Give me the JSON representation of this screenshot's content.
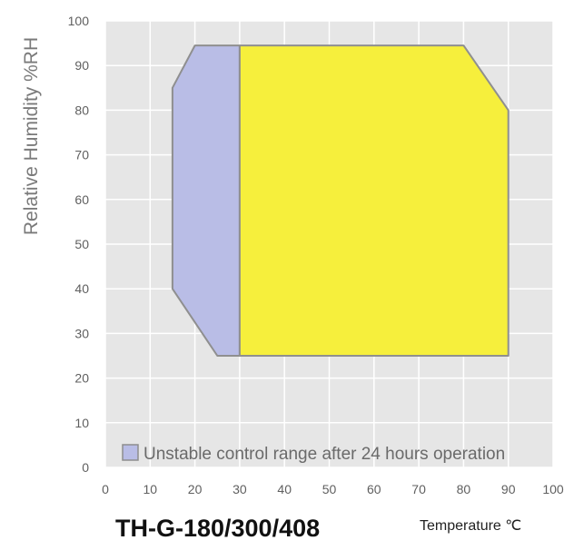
{
  "chart_data": {
    "type": "area",
    "title": "TH-G-180/300/408",
    "xlabel": "Temperature ℃",
    "ylabel": "Relative Humidity %RH",
    "xlim": [
      0,
      100
    ],
    "ylim": [
      0,
      100
    ],
    "x_ticks": [
      0,
      10,
      20,
      30,
      40,
      50,
      60,
      70,
      80,
      90,
      100
    ],
    "y_ticks": [
      0,
      10,
      20,
      30,
      40,
      50,
      60,
      70,
      80,
      90,
      100
    ],
    "grid": true,
    "series": [
      {
        "name": "Unstable control range after 24 hours operation",
        "color": "#b9bde6",
        "points": [
          [
            30,
            25
          ],
          [
            25,
            25
          ],
          [
            15,
            40
          ],
          [
            15,
            85
          ],
          [
            20,
            94.5
          ],
          [
            25,
            94.5
          ],
          [
            30,
            94.5
          ]
        ]
      },
      {
        "name": "",
        "color": "#f6ef3c",
        "points": [
          [
            30,
            25
          ],
          [
            90,
            25
          ],
          [
            90,
            80
          ],
          [
            80,
            94.5
          ],
          [
            30,
            94.5
          ]
        ]
      }
    ],
    "legend": {
      "placement": "bottom-left",
      "label": "Unstable control range after 24 hours operation"
    }
  }
}
